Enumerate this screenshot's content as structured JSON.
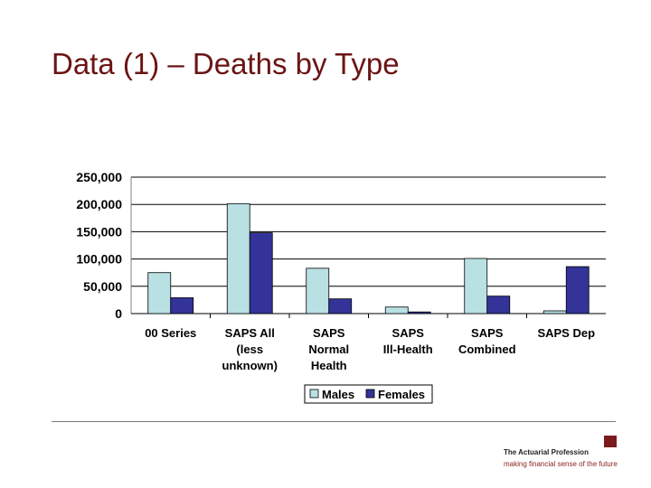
{
  "page": {
    "title": "Data (1) – Deaths by Type"
  },
  "footer": {
    "brand": "The Actuarial Profession",
    "tagline": "making financial sense of the future"
  },
  "colors": {
    "males": "#b9e0e3",
    "females": "#333399",
    "title": "#6b1414",
    "brand": "#7b1a1a"
  },
  "chart_data": {
    "type": "bar",
    "title": "",
    "xlabel": "",
    "ylabel": "",
    "ylim": [
      0,
      250000
    ],
    "yticks": [
      0,
      50000,
      100000,
      150000,
      200000,
      250000
    ],
    "ytick_labels": [
      "0",
      "50,000",
      "100,000",
      "150,000",
      "200,000",
      "250,000"
    ],
    "categories": [
      [
        "00 Series"
      ],
      [
        "SAPS All",
        "(less",
        "unknown)"
      ],
      [
        "SAPS",
        "Normal",
        "Health"
      ],
      [
        "SAPS",
        "Ill-Health"
      ],
      [
        "SAPS",
        "Combined"
      ],
      [
        "SAPS Dep"
      ]
    ],
    "series": [
      {
        "name": "Males",
        "values": [
          75000,
          201000,
          83000,
          12000,
          101000,
          5000
        ]
      },
      {
        "name": "Females",
        "values": [
          29000,
          148000,
          27000,
          3000,
          32000,
          86000
        ]
      }
    ],
    "legend_position": "bottom",
    "grid": true
  }
}
